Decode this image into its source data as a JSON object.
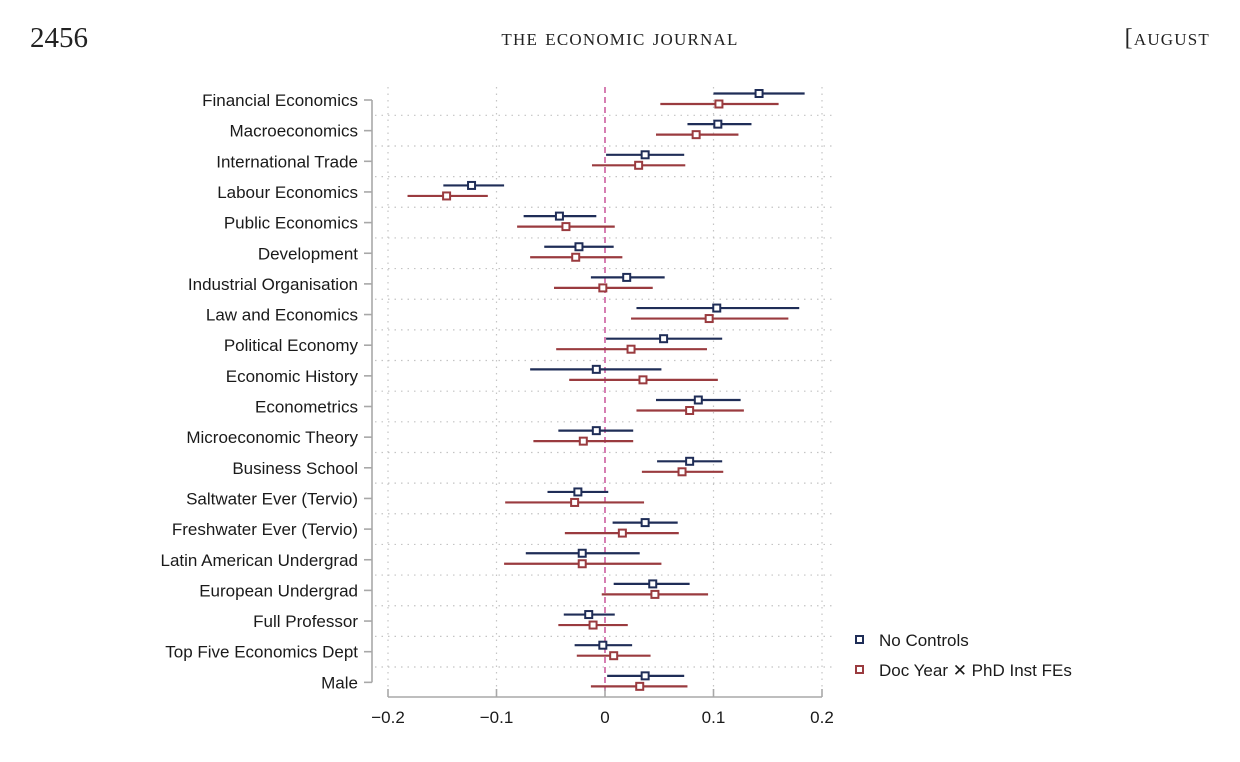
{
  "header": {
    "page_number": "2456",
    "journal_title": "the economic journal",
    "issue_month": "[august"
  },
  "colors": {
    "series_no_controls": "#1f2d57",
    "series_fes": "#9a3b3f",
    "zero_line": "#cc5fa0",
    "axis": "#a8a8a8",
    "grid": "#c4c4c4"
  },
  "chart_data": {
    "type": "coefficient-plot",
    "title": "",
    "xlabel": "",
    "ylabel": "",
    "xlim": [
      -0.2,
      0.2
    ],
    "x_ticks": [
      -0.2,
      -0.1,
      0,
      0.1,
      0.2
    ],
    "x_tick_labels": [
      "−0.2",
      "−0.1",
      "0",
      "0.1",
      "0.2"
    ],
    "reference_line": 0,
    "grid": true,
    "legend_position": "bottom-right",
    "categories": [
      "Financial Economics",
      "Macroeconomics",
      "International Trade",
      "Labour Economics",
      "Public Economics",
      "Development",
      "Industrial Organisation",
      "Law and Economics",
      "Political Economy",
      "Economic History",
      "Econometrics",
      "Microeconomic Theory",
      "Business School",
      "Saltwater Ever (Tervio)",
      "Freshwater Ever (Tervio)",
      "Latin American Undergrad",
      "European Undergrad",
      "Full Professor",
      "Top Five Economics Dept",
      "Male"
    ],
    "series": [
      {
        "name": "No Controls",
        "estimate": [
          0.142,
          0.104,
          0.037,
          -0.123,
          -0.042,
          -0.024,
          0.02,
          0.103,
          0.054,
          -0.008,
          0.086,
          -0.008,
          0.078,
          -0.025,
          0.037,
          -0.021,
          0.044,
          -0.015,
          -0.002,
          0.037
        ],
        "ci_low": [
          0.1,
          0.076,
          0.001,
          -0.149,
          -0.075,
          -0.056,
          -0.013,
          0.029,
          0.001,
          -0.069,
          0.047,
          -0.043,
          0.048,
          -0.053,
          0.007,
          -0.073,
          0.008,
          -0.038,
          -0.028,
          0.002
        ],
        "ci_high": [
          0.184,
          0.135,
          0.073,
          -0.093,
          -0.008,
          0.008,
          0.055,
          0.179,
          0.108,
          0.052,
          0.125,
          0.026,
          0.108,
          0.003,
          0.067,
          0.032,
          0.078,
          0.009,
          0.025,
          0.073
        ]
      },
      {
        "name": "Doc Year ✕ PhD Inst FEs",
        "estimate": [
          0.105,
          0.084,
          0.031,
          -0.146,
          -0.036,
          -0.027,
          -0.002,
          0.096,
          0.024,
          0.035,
          0.078,
          -0.02,
          0.071,
          -0.028,
          0.016,
          -0.021,
          0.046,
          -0.011,
          0.008,
          0.032
        ],
        "ci_low": [
          0.051,
          0.047,
          -0.012,
          -0.182,
          -0.081,
          -0.069,
          -0.047,
          0.024,
          -0.045,
          -0.033,
          0.029,
          -0.066,
          0.034,
          -0.092,
          -0.037,
          -0.093,
          -0.003,
          -0.043,
          -0.026,
          -0.013
        ],
        "ci_high": [
          0.16,
          0.123,
          0.074,
          -0.108,
          0.009,
          0.016,
          0.044,
          0.169,
          0.094,
          0.104,
          0.128,
          0.026,
          0.109,
          0.036,
          0.068,
          0.052,
          0.095,
          0.021,
          0.042,
          0.076
        ]
      }
    ]
  }
}
